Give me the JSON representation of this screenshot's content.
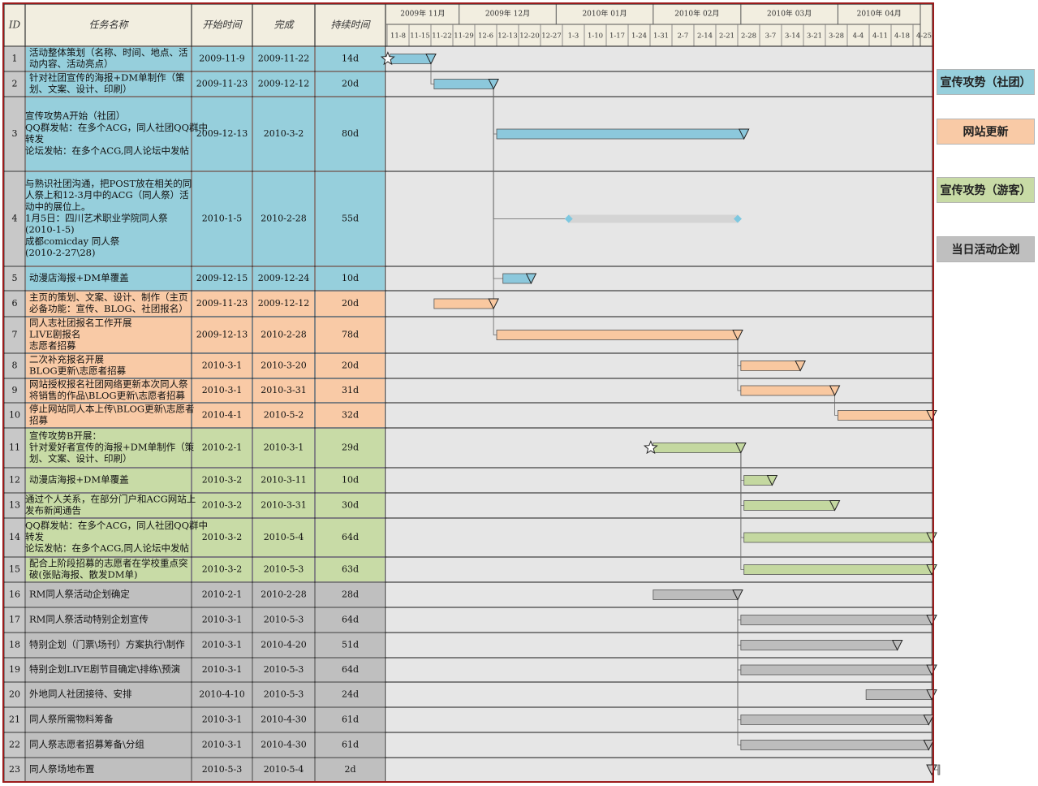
{
  "chart_data": {
    "type": "table",
    "header": {
      "id": "ID",
      "name": "任务名称",
      "start": "开始时间",
      "end": "完成",
      "duration": "持续时间"
    },
    "months": [
      "2009年 11月",
      "2009年 12月",
      "2010年 01月",
      "2010年 02月",
      "2010年 03月",
      "2010年 04月"
    ],
    "weeks": [
      "11-8",
      "11-15",
      "11-22",
      "11-29",
      "12-6",
      "12-13",
      "12-20",
      "12-27",
      "1-3",
      "1-10",
      "1-17",
      "1-24",
      "1-31",
      "2-7",
      "2-14",
      "2-21",
      "2-28",
      "3-7",
      "3-14",
      "3-21",
      "3-28",
      "4-4",
      "4-11",
      "4-18",
      "4-25"
    ],
    "legend": [
      {
        "label": "宣传攻势（社团）",
        "color": "#96cfdc"
      },
      {
        "label": "网站更新",
        "color": "#f9caa6"
      },
      {
        "label": "宣传攻势（游客）",
        "color": "#c8dba6"
      },
      {
        "label": "当日活动企划",
        "color": "#bfbfbf"
      }
    ],
    "colors": {
      "blue": "#96cfdc",
      "orange": "#f9caa6",
      "green": "#c8dba6",
      "gray": "#bfbfbf",
      "chart_bg": "#e6e6e6",
      "header_bg": "#f2eee0",
      "id_bg": "#c8c8c8",
      "blue_bar": "#8cc8dc",
      "orange_bar": "#f9c8a0",
      "green_bar": "#c4d8a0",
      "gray_bar": "#bdbdbd"
    },
    "tasks": [
      {
        "id": "1",
        "name": [
          "活动整体策划（名称、时间、地点、活",
          "动内容、活动亮点）"
        ],
        "start": "2009-11-9",
        "end": "2009-11-22",
        "dur": "14d",
        "group": "blue",
        "bar_start": "2009-11-09",
        "bar_end": "2009-11-22",
        "star": true
      },
      {
        "id": "2",
        "name": [
          "针对社团宣传的海报+DM单制作（策",
          "划、文案、设计、印刷）"
        ],
        "start": "2009-11-23",
        "end": "2009-12-12",
        "dur": "20d",
        "group": "blue",
        "bar_start": "2009-11-23",
        "bar_end": "2009-12-12"
      },
      {
        "id": "3",
        "name": [
          "宣传攻势A开始（社团）",
          "QQ群发帖：在多个ACG，同人社团QQ群中",
          "转发",
          "论坛发帖：在多个ACG,同人论坛中发帖"
        ],
        "start": "2009-12-13",
        "end": "2010-3-2",
        "dur": "80d",
        "group": "blue",
        "bar_start": "2009-12-13",
        "bar_end": "2010-03-02"
      },
      {
        "id": "4",
        "name": [
          "与熟识社团沟通，把POST放在相关的同",
          "人祭上和12-3月中的ACG（同人祭）活",
          "动中的展位上。",
          "1月5日：四川艺术职业学院同人祭",
          "(2010-1-5)",
          "成都comicday 同人祭",
          "(2010-2-27\\28)"
        ],
        "start": "2010-1-5",
        "end": "2010-2-28",
        "dur": "55d",
        "group": "blue",
        "bar_start": "2010-01-05",
        "bar_end": "2010-02-28",
        "milestone_style": true
      },
      {
        "id": "5",
        "name": [
          "动漫店海报+DM单覆盖"
        ],
        "start": "2009-12-15",
        "end": "2009-12-24",
        "dur": "10d",
        "group": "blue",
        "bar_start": "2009-12-15",
        "bar_end": "2009-12-24"
      },
      {
        "id": "6",
        "name": [
          "主页的策划、文案、设计、制作（主页",
          "必备功能：宣传、BLOG、社团报名）"
        ],
        "start": "2009-11-23",
        "end": "2009-12-12",
        "dur": "20d",
        "group": "orange",
        "bar_start": "2009-11-23",
        "bar_end": "2009-12-12"
      },
      {
        "id": "7",
        "name": [
          "同人志社团报名工作开展",
          "LIVE剧报名",
          "志愿者招募"
        ],
        "start": "2009-12-13",
        "end": "2010-2-28",
        "dur": "78d",
        "group": "orange",
        "bar_start": "2009-12-13",
        "bar_end": "2010-02-28"
      },
      {
        "id": "8",
        "name": [
          "二次补充报名开展",
          "BLOG更新\\志愿者招募"
        ],
        "start": "2010-3-1",
        "end": "2010-3-20",
        "dur": "20d",
        "group": "orange",
        "bar_start": "2010-03-01",
        "bar_end": "2010-03-20"
      },
      {
        "id": "9",
        "name": [
          "网站授权报名社团网络更新本次同人祭",
          "将销售的作品\\BLOG更新\\志愿者招募"
        ],
        "start": "2010-3-1",
        "end": "2010-3-31",
        "dur": "31d",
        "group": "orange",
        "bar_start": "2010-03-01",
        "bar_end": "2010-03-31"
      },
      {
        "id": "10",
        "name": [
          "停止网站同人本上传\\BLOG更新\\志愿者",
          "招募"
        ],
        "start": "2010-4-1",
        "end": "2010-5-2",
        "dur": "32d",
        "group": "orange",
        "bar_start": "2010-04-01",
        "bar_end": "2010-05-02"
      },
      {
        "id": "11",
        "name": [
          "宣传攻势B开展：",
          "针对爱好者宣传的海报+DM单制作（策",
          "划、文案、设计、印刷）"
        ],
        "start": "2010-2-1",
        "end": "2010-3-1",
        "dur": "29d",
        "group": "green",
        "bar_start": "2010-02-01",
        "bar_end": "2010-03-01",
        "star": true
      },
      {
        "id": "12",
        "name": [
          "动漫店海报+DM单覆盖"
        ],
        "start": "2010-3-2",
        "end": "2010-3-11",
        "dur": "10d",
        "group": "green",
        "bar_start": "2010-03-02",
        "bar_end": "2010-03-11"
      },
      {
        "id": "13",
        "name": [
          "通过个人关系，在部分门户和ACG网站上",
          "发布新闻通告"
        ],
        "start": "2010-3-2",
        "end": "2010-3-31",
        "dur": "30d",
        "group": "green",
        "bar_start": "2010-03-02",
        "bar_end": "2010-03-31"
      },
      {
        "id": "14",
        "name": [
          "QQ群发帖：在多个ACG，同人社团QQ群中",
          "转发",
          "论坛发帖：在多个ACG,同人论坛中发帖"
        ],
        "start": "2010-3-2",
        "end": "2010-5-4",
        "dur": "64d",
        "group": "green",
        "bar_start": "2010-03-02",
        "bar_end": "2010-05-04"
      },
      {
        "id": "15",
        "name": [
          "配合上阶段招募的志愿者在学校重点突",
          "破(张贴海报、散发DM单)"
        ],
        "start": "2010-3-2",
        "end": "2010-5-3",
        "dur": "63d",
        "group": "green",
        "bar_start": "2010-03-02",
        "bar_end": "2010-05-03"
      },
      {
        "id": "16",
        "name": [
          "RM同人祭活动企划确定"
        ],
        "start": "2010-2-1",
        "end": "2010-2-28",
        "dur": "28d",
        "group": "gray",
        "bar_start": "2010-02-01",
        "bar_end": "2010-02-28"
      },
      {
        "id": "17",
        "name": [
          "RM同人祭活动特别企划宣传"
        ],
        "start": "2010-3-1",
        "end": "2010-5-3",
        "dur": "64d",
        "group": "gray",
        "bar_start": "2010-03-01",
        "bar_end": "2010-05-03"
      },
      {
        "id": "18",
        "name": [
          "特别企划（门票\\场刊）方案执行\\制作"
        ],
        "start": "2010-3-1",
        "end": "2010-4-20",
        "dur": "51d",
        "group": "gray",
        "bar_start": "2010-03-01",
        "bar_end": "2010-04-20"
      },
      {
        "id": "19",
        "name": [
          "特别企划LIVE剧节目确定\\排练\\预演"
        ],
        "start": "2010-3-1",
        "end": "2010-5-3",
        "dur": "64d",
        "group": "gray",
        "bar_start": "2010-03-01",
        "bar_end": "2010-05-03"
      },
      {
        "id": "20",
        "name": [
          "外地同人社团接待、安排"
        ],
        "start": "2010-4-10",
        "end": "2010-5-3",
        "dur": "24d",
        "group": "gray",
        "bar_start": "2010-04-10",
        "bar_end": "2010-05-03"
      },
      {
        "id": "21",
        "name": [
          "同人祭所需物料筹备"
        ],
        "start": "2010-3-1",
        "end": "2010-4-30",
        "dur": "61d",
        "group": "gray",
        "bar_start": "2010-03-01",
        "bar_end": "2010-04-30"
      },
      {
        "id": "22",
        "name": [
          "同人祭志愿者招募筹备\\分组"
        ],
        "start": "2010-3-1",
        "end": "2010-4-30",
        "dur": "61d",
        "group": "gray",
        "bar_start": "2010-03-01",
        "bar_end": "2010-04-30"
      },
      {
        "id": "23",
        "name": [
          "同人祭场地布置"
        ],
        "start": "2010-5-3",
        "end": "2010-5-4",
        "dur": "2d",
        "group": "gray",
        "bar_start": "2010-05-03",
        "bar_end": "2010-05-04"
      }
    ],
    "dependencies": [
      [
        1,
        2
      ],
      [
        2,
        3
      ],
      [
        2,
        4
      ],
      [
        2,
        5
      ],
      [
        2,
        6
      ],
      [
        6,
        7
      ],
      [
        7,
        8
      ],
      [
        7,
        9
      ],
      [
        9,
        10
      ],
      [
        11,
        12
      ],
      [
        11,
        13
      ],
      [
        11,
        14
      ],
      [
        11,
        15
      ],
      [
        16,
        17
      ],
      [
        16,
        18
      ],
      [
        16,
        19
      ],
      [
        16,
        21
      ],
      [
        16,
        22
      ],
      [
        17,
        23
      ]
    ]
  }
}
